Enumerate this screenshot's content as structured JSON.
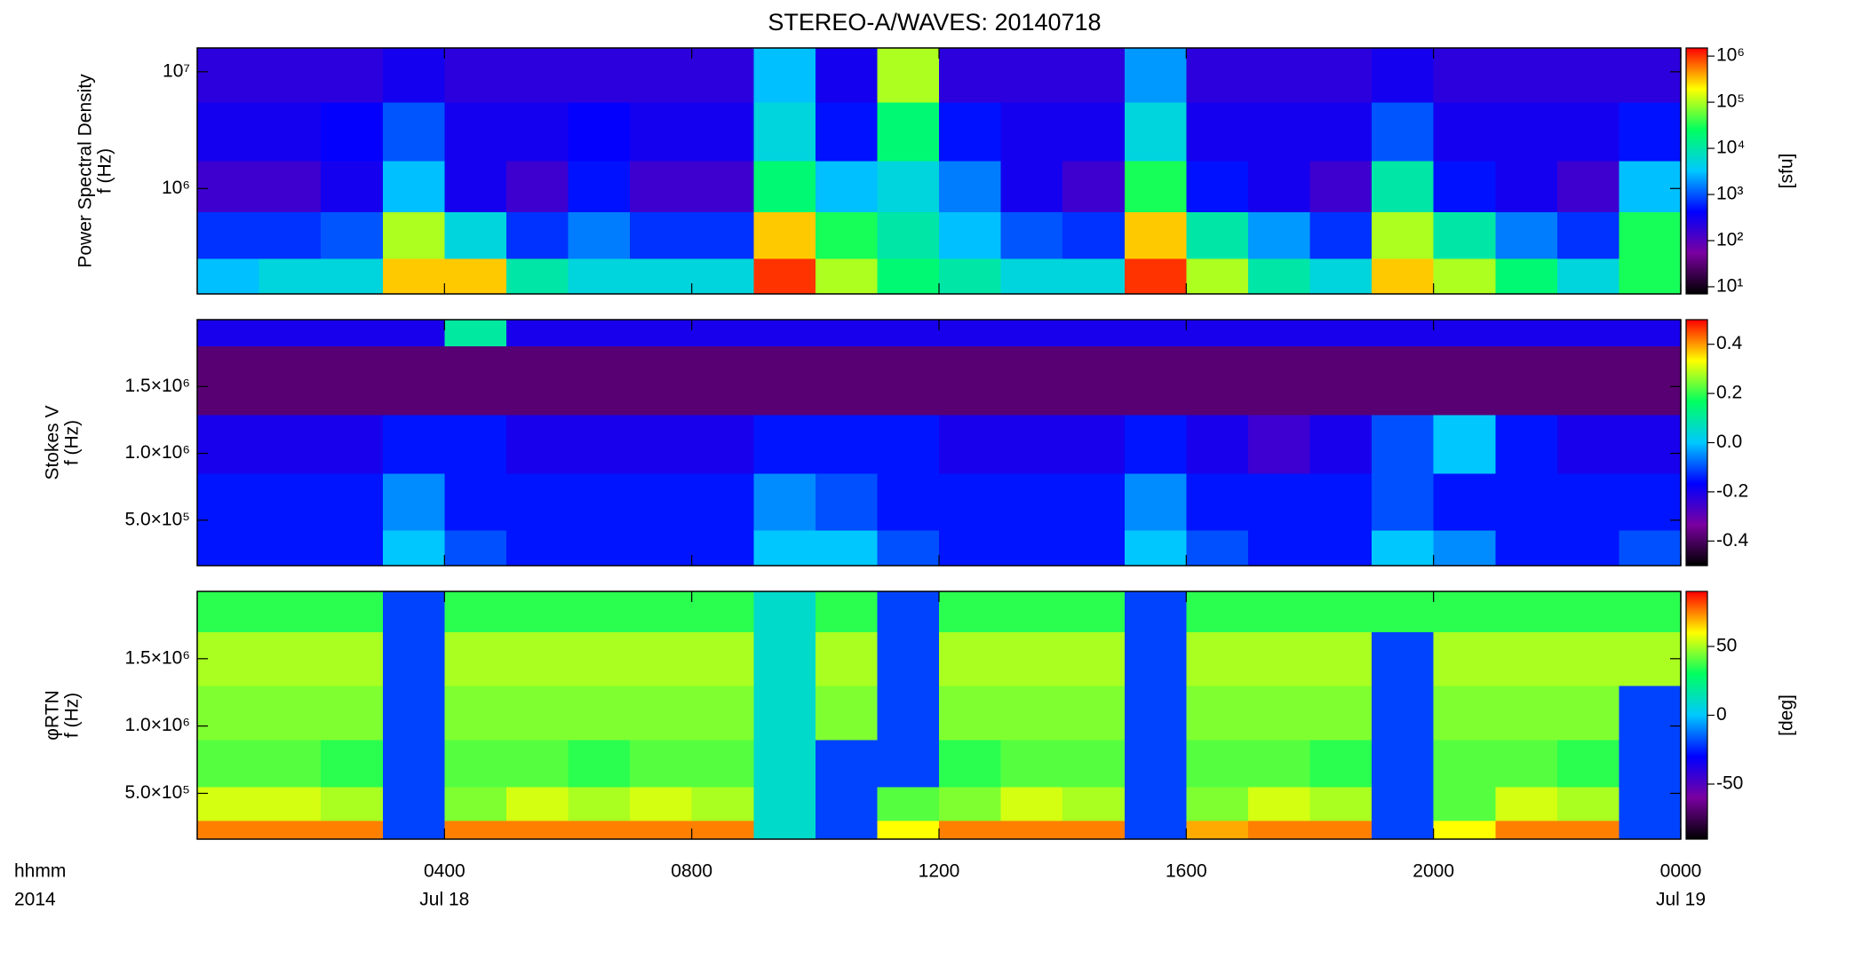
{
  "chart_data": [
    {
      "type": "heatmap",
      "title": "STEREO-A/WAVES: 20140718",
      "ylabel_lines": [
        "Power Spectral Density",
        "f (Hz)"
      ],
      "colorbar_label": "[sfu]",
      "ylog": true,
      "zlog": true,
      "colormap": [
        "#000000",
        "#7a00a0",
        "#0000ff",
        "#00c8ff",
        "#00ff60",
        "#ffff00",
        "#ff0000"
      ],
      "xlim": [
        0,
        24
      ],
      "ylim": [
        125000,
        16000000
      ],
      "yticks": [
        {
          "value": 1000000,
          "label": "10⁶"
        },
        {
          "value": 10000000,
          "label": "10⁷"
        }
      ],
      "zlim": [
        7,
        1500000
      ],
      "zticks": [
        {
          "value": 10,
          "label": "10¹"
        },
        {
          "value": 100,
          "label": "10²"
        },
        {
          "value": 1000,
          "label": "10³"
        },
        {
          "value": 10000,
          "label": "10⁴"
        },
        {
          "value": 100000,
          "label": "10⁵"
        },
        {
          "value": 1000000,
          "label": "10⁶"
        }
      ],
      "x": [
        0.5,
        1.5,
        2.5,
        3.5,
        4.5,
        5.5,
        6.5,
        7.5,
        8.5,
        9.5,
        10.5,
        11.5,
        12.5,
        13.5,
        14.5,
        15.5,
        16.5,
        17.5,
        18.5,
        19.5,
        20.5,
        21.5,
        22.5,
        23.5
      ],
      "y": [
        160000,
        400000,
        1000000,
        3000000,
        10000000
      ],
      "z": [
        [
          3000,
          5000,
          5000,
          300000,
          300000,
          10000,
          5000,
          5000,
          5000,
          1000000,
          100000,
          20000,
          10000,
          5000,
          5000,
          1000000,
          100000,
          10000,
          5000,
          300000,
          100000,
          20000,
          5000,
          30000
        ],
        [
          700,
          700,
          1000,
          100000,
          5000,
          700,
          1500,
          700,
          700,
          300000,
          30000,
          10000,
          3000,
          1000,
          700,
          300000,
          10000,
          2000,
          700,
          100000,
          10000,
          1500,
          700,
          30000
        ],
        [
          150,
          150,
          300,
          3000,
          300,
          150,
          500,
          150,
          150,
          20000,
          3000,
          5000,
          1500,
          300,
          150,
          30000,
          500,
          300,
          150,
          10000,
          500,
          300,
          150,
          3000
        ],
        [
          300,
          300,
          400,
          1000,
          300,
          300,
          400,
          300,
          300,
          5000,
          500,
          20000,
          500,
          300,
          300,
          5000,
          300,
          300,
          300,
          1000,
          300,
          300,
          300,
          500
        ],
        [
          200,
          200,
          200,
          300,
          200,
          200,
          200,
          200,
          200,
          3000,
          300,
          100000,
          200,
          200,
          200,
          2000,
          200,
          200,
          200,
          300,
          200,
          200,
          200,
          200
        ]
      ]
    },
    {
      "type": "heatmap",
      "ylabel_lines": [
        "Stokes V",
        "f (Hz)"
      ],
      "ylog": false,
      "zlog": false,
      "colormap": [
        "#000000",
        "#7a00a0",
        "#0000ff",
        "#00c8ff",
        "#00ff60",
        "#ffff00",
        "#ff0000"
      ],
      "xlim": [
        0,
        24
      ],
      "ylim": [
        160000,
        2000000
      ],
      "yticks": [
        {
          "value": 500000,
          "label": "5.0×10⁵"
        },
        {
          "value": 1000000,
          "label": "1.0×10⁶"
        },
        {
          "value": 1500000,
          "label": "1.5×10⁶"
        }
      ],
      "zlim": [
        -0.5,
        0.5
      ],
      "zticks": [
        -0.4,
        -0.2,
        {
          "value": 0,
          "label": "0.0"
        },
        0.2,
        0.4
      ],
      "x": [
        0.5,
        1.5,
        2.5,
        3.5,
        4.5,
        5.5,
        6.5,
        7.5,
        8.5,
        9.5,
        10.5,
        11.5,
        12.5,
        13.5,
        14.5,
        15.5,
        16.5,
        17.5,
        18.5,
        19.5,
        20.5,
        21.5,
        22.5,
        23.5
      ],
      "y": [
        250000,
        600000,
        1100000,
        1480000,
        1710000,
        1900000
      ],
      "z": [
        [
          -0.15,
          -0.15,
          -0.15,
          0,
          -0.1,
          -0.15,
          -0.15,
          -0.15,
          -0.15,
          0,
          0,
          -0.1,
          -0.15,
          -0.15,
          -0.15,
          0,
          -0.1,
          -0.15,
          -0.15,
          0,
          -0.05,
          -0.15,
          -0.15,
          -0.1
        ],
        [
          -0.15,
          -0.15,
          -0.15,
          -0.05,
          -0.15,
          -0.15,
          -0.15,
          -0.15,
          -0.15,
          -0.05,
          -0.1,
          -0.15,
          -0.15,
          -0.15,
          -0.15,
          -0.05,
          -0.15,
          -0.15,
          -0.15,
          -0.1,
          -0.15,
          -0.15,
          -0.15,
          -0.15
        ],
        [
          -0.2,
          -0.2,
          -0.2,
          -0.15,
          -0.15,
          -0.2,
          -0.2,
          -0.2,
          -0.2,
          -0.15,
          -0.15,
          -0.15,
          -0.2,
          -0.2,
          -0.2,
          -0.15,
          -0.2,
          -0.25,
          -0.2,
          -0.1,
          0,
          -0.15,
          -0.2,
          -0.2
        ],
        [
          -0.38,
          -0.38,
          -0.38,
          -0.38,
          -0.38,
          -0.38,
          -0.38,
          -0.38,
          -0.38,
          -0.38,
          -0.38,
          -0.38,
          -0.38,
          -0.38,
          -0.38,
          -0.38,
          -0.38,
          -0.38,
          -0.38,
          -0.38,
          -0.38,
          -0.38,
          -0.38,
          -0.38
        ],
        [
          -0.38,
          -0.38,
          -0.38,
          -0.38,
          -0.38,
          -0.38,
          -0.38,
          -0.38,
          -0.38,
          -0.38,
          -0.38,
          -0.38,
          -0.38,
          -0.38,
          -0.38,
          -0.38,
          -0.38,
          -0.38,
          -0.38,
          -0.38,
          -0.38,
          -0.38,
          -0.38,
          -0.38
        ],
        [
          -0.2,
          -0.2,
          -0.2,
          -0.2,
          0.1,
          -0.2,
          -0.2,
          -0.2,
          -0.2,
          -0.2,
          -0.2,
          -0.2,
          -0.2,
          -0.2,
          -0.2,
          -0.2,
          -0.2,
          -0.2,
          -0.2,
          -0.2,
          -0.2,
          -0.2,
          -0.2,
          -0.2
        ]
      ]
    },
    {
      "type": "heatmap",
      "ylabel_lines": [
        "φRTN",
        "f (Hz)"
      ],
      "colorbar_label": "[deg]",
      "ylog": false,
      "zlog": false,
      "colormap": [
        "#000000",
        "#7a00a0",
        "#0000ff",
        "#00c8ff",
        "#00ff60",
        "#ffff00",
        "#ff0000"
      ],
      "xlim": [
        0,
        24
      ],
      "ylim": [
        160000,
        2000000
      ],
      "yticks": [
        {
          "value": 500000,
          "label": "5.0×10⁵"
        },
        {
          "value": 1000000,
          "label": "1.0×10⁶"
        },
        {
          "value": 1500000,
          "label": "1.5×10⁶"
        }
      ],
      "zlim": [
        -90,
        90
      ],
      "zticks": [
        -50,
        0,
        50
      ],
      "xticks": [
        {
          "value": 4,
          "label": "0400"
        },
        {
          "value": 8,
          "label": "0800"
        },
        {
          "value": 12,
          "label": "1200"
        },
        {
          "value": 16,
          "label": "1600"
        },
        {
          "value": 20,
          "label": "2000"
        },
        {
          "value": 24,
          "label": "0000"
        }
      ],
      "date_labels": [
        {
          "value": 4,
          "label": "Jul 18"
        },
        {
          "value": 24,
          "label": "Jul 19"
        }
      ],
      "x_label_lines": [
        "hhmm",
        "2014"
      ],
      "x": [
        0.5,
        1.5,
        2.5,
        3.5,
        4.5,
        5.5,
        6.5,
        7.5,
        8.5,
        9.5,
        10.5,
        11.5,
        12.5,
        13.5,
        14.5,
        15.5,
        16.5,
        17.5,
        18.5,
        19.5,
        20.5,
        21.5,
        22.5,
        23.5
      ],
      "y": [
        200000,
        400000,
        700000,
        1100000,
        1500000,
        1900000
      ],
      "z": [
        [
          75,
          75,
          75,
          -20,
          75,
          75,
          75,
          75,
          75,
          10,
          -20,
          60,
          75,
          75,
          75,
          -20,
          70,
          75,
          75,
          -20,
          60,
          75,
          75,
          -20
        ],
        [
          55,
          55,
          50,
          -20,
          45,
          55,
          50,
          55,
          50,
          10,
          -20,
          40,
          45,
          55,
          50,
          -20,
          45,
          55,
          50,
          -20,
          40,
          55,
          50,
          -20
        ],
        [
          40,
          40,
          35,
          -20,
          40,
          40,
          35,
          40,
          40,
          10,
          -20,
          -20,
          35,
          40,
          40,
          -20,
          40,
          40,
          35,
          -20,
          40,
          40,
          35,
          -20
        ],
        [
          45,
          45,
          45,
          -20,
          45,
          45,
          45,
          45,
          45,
          10,
          45,
          -20,
          45,
          45,
          45,
          -20,
          45,
          45,
          45,
          -20,
          45,
          45,
          45,
          -20
        ],
        [
          50,
          50,
          50,
          -20,
          50,
          50,
          50,
          50,
          50,
          10,
          50,
          -20,
          50,
          50,
          50,
          -20,
          50,
          50,
          50,
          -20,
          50,
          50,
          50,
          50
        ],
        [
          35,
          35,
          35,
          -20,
          35,
          35,
          35,
          35,
          35,
          10,
          35,
          -20,
          35,
          35,
          35,
          -20,
          35,
          35,
          35,
          35,
          35,
          35,
          35,
          35
        ]
      ]
    }
  ]
}
